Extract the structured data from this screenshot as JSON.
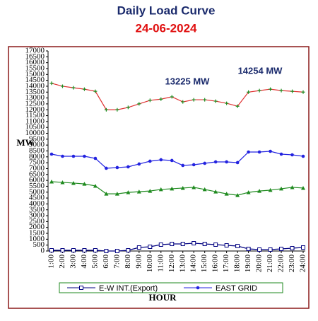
{
  "chart_data": {
    "type": "line",
    "title": "Daily Load Curve",
    "subtitle": "24-06-2024",
    "y_label": "MW",
    "x_label": "HOUR",
    "annotations": [
      "13225 MW",
      "14254 MW"
    ],
    "categories": [
      "1:00",
      "2:00",
      "3:00",
      "4:00",
      "5:00",
      "6:00",
      "7:00",
      "8:00",
      "9:00",
      "10:00",
      "11:00",
      "12:00",
      "13:00",
      "14:00",
      "15:00",
      "16:00",
      "17:00",
      "18:00",
      "19:00",
      "20:00",
      "21:00",
      "22:00",
      "23:00",
      "24:00"
    ],
    "ylim": [
      0,
      17000
    ],
    "yticks": [
      0,
      500,
      1000,
      1500,
      2000,
      2500,
      3000,
      3500,
      4000,
      4500,
      5000,
      5500,
      6000,
      6500,
      7000,
      7500,
      8000,
      8500,
      9000,
      9500,
      10000,
      10500,
      11000,
      11500,
      12000,
      12500,
      13000,
      13500,
      14000,
      14500,
      15000,
      15500,
      16000,
      16500,
      17000
    ],
    "grid": false,
    "series": [
      {
        "name": "E-W INT.(Export)",
        "color": "#000080",
        "marker": "square",
        "marker_color": "#000080",
        "values": [
          60,
          60,
          60,
          60,
          60,
          0,
          0,
          60,
          300,
          360,
          540,
          600,
          600,
          660,
          600,
          540,
          480,
          420,
          180,
          120,
          120,
          180,
          240,
          300
        ]
      },
      {
        "name": "EAST GRID",
        "color": "#2323e0",
        "marker": "circle",
        "marker_color": "#2323e0",
        "values": [
          8230,
          8050,
          8050,
          8050,
          7870,
          7030,
          7090,
          7150,
          7390,
          7630,
          7750,
          7690,
          7270,
          7330,
          7450,
          7570,
          7570,
          7510,
          8410,
          8410,
          8470,
          8230,
          8170,
          8050
        ]
      },
      {
        "color": "#1f8a1f",
        "marker": "triangle",
        "marker_color": "#1f8a1f",
        "values": [
          5890,
          5830,
          5770,
          5700,
          5530,
          4860,
          4860,
          4980,
          5040,
          5100,
          5230,
          5290,
          5350,
          5410,
          5230,
          5040,
          4860,
          4740,
          4980,
          5100,
          5170,
          5290,
          5410,
          5350
        ]
      },
      {
        "color": "#e03030",
        "marker": "plus",
        "marker_color": "#1f8a1f",
        "values": [
          14250,
          14000,
          13870,
          13750,
          13570,
          12000,
          12000,
          12200,
          12500,
          12800,
          12900,
          13100,
          12670,
          12850,
          12850,
          12730,
          12550,
          12300,
          13500,
          13630,
          13750,
          13630,
          13570,
          13500
        ]
      }
    ]
  }
}
